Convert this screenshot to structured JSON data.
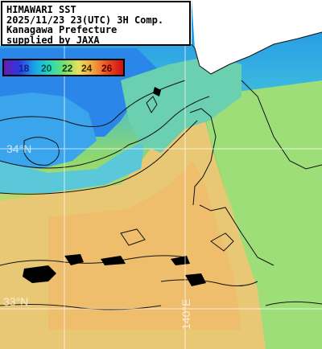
{
  "info": {
    "lines": [
      "HIMAWARI SST",
      "2025/11/23 23(UTC) 3H Comp.",
      "Kanagawa Prefecture",
      "supplied by JAXA"
    ]
  },
  "legend": {
    "ticks": [
      "18",
      "20",
      "22",
      "24",
      "26"
    ],
    "tick_colors": [
      "#1a1a8a",
      "#0a4a4a",
      "#0a3a0a",
      "#3a2a00",
      "#5a0000"
    ],
    "gradient_colors": [
      "#6a1ab0",
      "#2a3ae0",
      "#1aa0e8",
      "#20d8c0",
      "#70e070",
      "#e8e060",
      "#f0a040",
      "#e84a20",
      "#d01010"
    ]
  },
  "grid": {
    "lat_label_1": "34°N",
    "lat_label_2": "33°N",
    "lon_label": "140°E"
  },
  "colors": {
    "land": "#ffffff",
    "sea_warm": "#e8c070",
    "sea_cool": "#3cb0e0",
    "sea_cold": "#2a7ae0",
    "sea_mid": "#8ed870",
    "contour": "#111111",
    "cloud_mask": "#000000"
  }
}
